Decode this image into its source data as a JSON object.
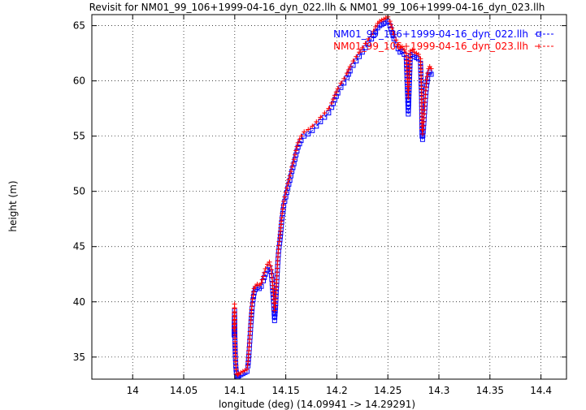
{
  "chart_data": {
    "type": "scatter",
    "title": "Revisit for NM01_99_106+1999-04-16_dyn_022.llh & NM01_99_106+1999-04-16_dyn_023.llh",
    "xlabel": "longitude (deg) (14.09941 -> 14.29291)",
    "ylabel": "height (m)",
    "xlim": [
      13.96,
      14.425
    ],
    "ylim": [
      33,
      66
    ],
    "x_ticks": [
      14,
      14.05,
      14.1,
      14.15,
      14.2,
      14.25,
      14.3,
      14.35,
      14.4
    ],
    "x_tick_labels": [
      "14",
      "14.05",
      "14.1",
      "14.15",
      "14.2",
      "14.25",
      "14.3",
      "14.35",
      "14.4"
    ],
    "y_ticks": [
      35,
      40,
      45,
      50,
      55,
      60,
      65
    ],
    "y_tick_labels": [
      "35",
      "40",
      "45",
      "50",
      "55",
      "60",
      "65"
    ],
    "grid": true,
    "legend_position": "top-right",
    "series": [
      {
        "name": "NM01_99_106+1999-04-16_dyn_022.llh",
        "color": "#0000ff",
        "marker": "square",
        "line": "dashed",
        "x": [
          14.0994,
          14.0996,
          14.0998,
          14.1,
          14.1002,
          14.1005,
          14.101,
          14.1015,
          14.102,
          14.103,
          14.104,
          14.106,
          14.108,
          14.11,
          14.112,
          14.113,
          14.114,
          14.115,
          14.116,
          14.117,
          14.118,
          14.119,
          14.12,
          14.122,
          14.124,
          14.126,
          14.128,
          14.13,
          14.132,
          14.134,
          14.136,
          14.137,
          14.138,
          14.139,
          14.14,
          14.141,
          14.142,
          14.143,
          14.144,
          14.145,
          14.146,
          14.147,
          14.148,
          14.15,
          14.152,
          14.154,
          14.156,
          14.158,
          14.16,
          14.162,
          14.165,
          14.168,
          14.172,
          14.176,
          14.18,
          14.184,
          14.188,
          14.192,
          14.195,
          14.198,
          14.201,
          14.204,
          14.207,
          14.21,
          14.213,
          14.216,
          14.219,
          14.222,
          14.225,
          14.228,
          14.231,
          14.234,
          14.236,
          14.238,
          14.24,
          14.242,
          14.244,
          14.246,
          14.248,
          14.25,
          14.252,
          14.254,
          14.256,
          14.258,
          14.26,
          14.262,
          14.264,
          14.266,
          14.268,
          14.269,
          14.27,
          14.271,
          14.272,
          14.274,
          14.276,
          14.278,
          14.28,
          14.282,
          14.283,
          14.2835,
          14.284,
          14.285,
          14.286,
          14.287,
          14.288,
          14.289,
          14.29,
          14.291,
          14.2925
        ],
        "y": [
          37.0,
          38.5,
          39.2,
          37.8,
          36.4,
          35.2,
          34.2,
          33.6,
          33.3,
          33.2,
          33.3,
          33.4,
          33.5,
          33.6,
          33.7,
          34.2,
          35.4,
          36.8,
          38.2,
          39.4,
          40.2,
          40.8,
          41.1,
          41.3,
          41.2,
          41.4,
          41.9,
          42.5,
          42.9,
          43.1,
          42.4,
          41.3,
          40.0,
          38.3,
          39.5,
          41.5,
          43.2,
          44.6,
          45.3,
          46.2,
          47.2,
          48.0,
          48.7,
          49.5,
          50.3,
          51.0,
          51.8,
          52.5,
          53.3,
          54.0,
          54.6,
          55.0,
          55.2,
          55.5,
          55.9,
          56.3,
          56.7,
          57.1,
          57.6,
          58.3,
          58.9,
          59.4,
          59.8,
          60.3,
          60.9,
          61.4,
          61.8,
          62.2,
          62.6,
          63.0,
          63.4,
          63.8,
          64.1,
          64.5,
          64.8,
          65.0,
          65.1,
          65.2,
          65.3,
          65.4,
          65.0,
          64.4,
          63.8,
          63.3,
          62.9,
          62.6,
          62.7,
          62.4,
          62.1,
          59.5,
          57.0,
          59.5,
          62.3,
          62.4,
          62.2,
          62.1,
          62.0,
          61.6,
          58.5,
          55.0,
          54.7,
          55.8,
          57.2,
          58.6,
          59.6,
          60.2,
          60.6,
          60.8,
          60.6
        ]
      },
      {
        "name": "NM01_99_106+1999-04-16_dyn_023.llh",
        "color": "#ff0000",
        "marker": "plus",
        "line": "dashed",
        "x": [
          14.0994,
          14.0996,
          14.0998,
          14.1,
          14.1002,
          14.1005,
          14.101,
          14.1015,
          14.102,
          14.103,
          14.104,
          14.106,
          14.108,
          14.11,
          14.112,
          14.113,
          14.114,
          14.115,
          14.116,
          14.117,
          14.118,
          14.119,
          14.12,
          14.122,
          14.124,
          14.126,
          14.128,
          14.13,
          14.132,
          14.134,
          14.136,
          14.137,
          14.138,
          14.139,
          14.14,
          14.141,
          14.142,
          14.143,
          14.144,
          14.145,
          14.146,
          14.147,
          14.148,
          14.15,
          14.152,
          14.154,
          14.156,
          14.158,
          14.16,
          14.162,
          14.165,
          14.168,
          14.172,
          14.176,
          14.18,
          14.184,
          14.188,
          14.192,
          14.195,
          14.198,
          14.201,
          14.204,
          14.207,
          14.21,
          14.213,
          14.216,
          14.219,
          14.222,
          14.225,
          14.228,
          14.231,
          14.234,
          14.236,
          14.238,
          14.24,
          14.242,
          14.244,
          14.246,
          14.248,
          14.25,
          14.252,
          14.254,
          14.256,
          14.258,
          14.26,
          14.262,
          14.264,
          14.266,
          14.268,
          14.269,
          14.27,
          14.271,
          14.272,
          14.274,
          14.276,
          14.278,
          14.28,
          14.282,
          14.283,
          14.2835,
          14.284,
          14.285,
          14.286,
          14.287,
          14.288,
          14.289,
          14.29,
          14.291,
          14.2925
        ],
        "y": [
          37.6,
          39.0,
          39.8,
          38.4,
          37.0,
          35.8,
          34.6,
          33.9,
          33.5,
          33.4,
          33.5,
          33.6,
          33.7,
          33.8,
          33.9,
          34.6,
          35.9,
          37.3,
          38.7,
          39.9,
          40.6,
          41.2,
          41.4,
          41.6,
          41.5,
          41.7,
          42.3,
          43.0,
          43.4,
          43.6,
          42.9,
          41.8,
          40.6,
          39.2,
          40.2,
          42.0,
          43.7,
          45.1,
          45.8,
          46.7,
          47.6,
          48.4,
          49.1,
          49.9,
          50.7,
          51.4,
          52.2,
          52.9,
          53.7,
          54.4,
          55.0,
          55.4,
          55.6,
          55.9,
          56.3,
          56.7,
          57.1,
          57.5,
          58.0,
          58.7,
          59.3,
          59.8,
          60.2,
          60.7,
          61.3,
          61.8,
          62.2,
          62.6,
          63.0,
          63.4,
          63.8,
          64.2,
          64.5,
          64.9,
          65.2,
          65.4,
          65.5,
          65.6,
          65.7,
          65.8,
          65.4,
          64.8,
          64.2,
          63.7,
          63.3,
          63.0,
          63.1,
          62.8,
          62.5,
          60.5,
          58.5,
          60.5,
          62.7,
          62.8,
          62.6,
          62.5,
          62.4,
          62.0,
          59.2,
          55.6,
          55.2,
          56.3,
          57.7,
          59.1,
          60.1,
          60.7,
          61.1,
          61.3,
          61.1
        ]
      }
    ]
  }
}
